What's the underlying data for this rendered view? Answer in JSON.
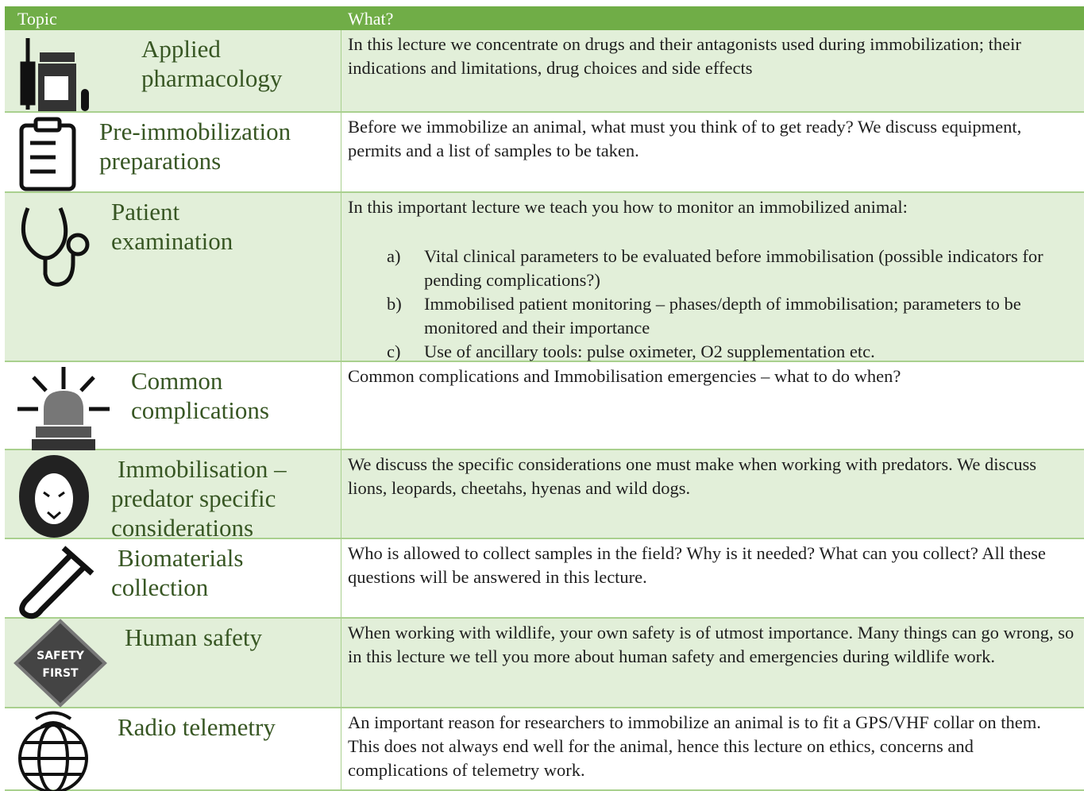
{
  "table": {
    "header": [
      "Topic",
      "What?"
    ],
    "rows": [
      {
        "topic": [
          "Applied",
          "pharmacology"
        ],
        "description": "In this lecture we concentrate on drugs and their antagonists used during immobilization; their indications and limitations, drug choices and side effects"
      },
      {
        "topic": [
          "Pre-immobilization",
          "preparations"
        ],
        "description": "Before we immobilize an animal, what must you think of to get ready? We discuss equipment, permits and a list of samples to be taken."
      },
      {
        "topic": [
          "Patient",
          "examination"
        ],
        "description": "In this important lecture we teach you how to monitor an immobilized animal:",
        "list": [
          {
            "marker": "a)",
            "text": "Vital clinical parameters to be evaluated before immobilisation (possible indicators for pending complications?)"
          },
          {
            "marker": "b)",
            "text": "Immobilised patient monitoring – phases/depth of immobilisation; parameters to be monitored and their importance"
          },
          {
            "marker": "c)",
            "text": "Use of ancillary tools: pulse oximeter, O2 supplementation etc."
          }
        ]
      },
      {
        "topic": [
          "Common",
          "complications"
        ],
        "description": "Common complications and Immobilisation emergencies – what to do when?"
      },
      {
        "topic": [
          "Immobilisation –",
          "predator specific",
          "considerations"
        ],
        "description": "We discuss the specific considerations one must make when working with predators. We discuss lions, leopards, cheetahs, hyenas and wild dogs."
      },
      {
        "topic": [
          "Biomaterials",
          "collection"
        ],
        "description": "Who is allowed to collect samples in the field? Why is it needed? What can you collect? All these questions will be answered in this lecture."
      },
      {
        "topic": [
          "Human safety"
        ],
        "icon_text": [
          "SAFETY",
          "FIRST"
        ],
        "description": "When working with wildlife, your own safety is of utmost importance. Many things can go wrong, so in this lecture we tell you more about human safety and emergencies during wildlife work."
      },
      {
        "topic": [
          "Radio telemetry"
        ],
        "description": "An important reason for researchers to immobilize an animal is to fit a GPS/VHF collar on them. This does not always end well for the animal, hence this lecture on ethics, concerns and complications of telemetry work."
      }
    ]
  }
}
